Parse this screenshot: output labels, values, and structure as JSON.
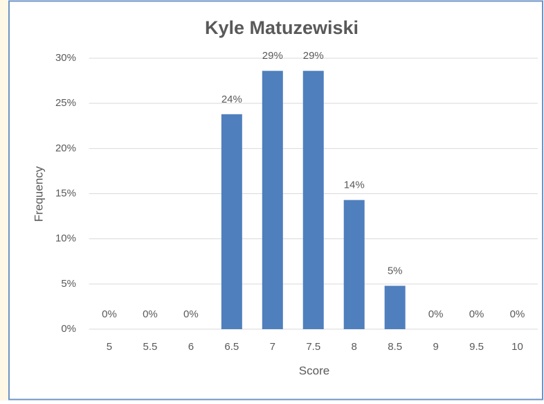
{
  "chart_data": {
    "type": "bar",
    "title": "Kyle Matuzewiski",
    "x_label": "Score",
    "y_label": "Frequency",
    "categories": [
      "5",
      "5.5",
      "6",
      "6.5",
      "7",
      "7.5",
      "8",
      "8.5",
      "9",
      "9.5",
      "10"
    ],
    "values": [
      0,
      0,
      0,
      23.8,
      28.6,
      28.6,
      14.3,
      4.8,
      0,
      0,
      0
    ],
    "value_labels": [
      "0%",
      "0%",
      "0%",
      "24%",
      "29%",
      "29%",
      "14%",
      "5%",
      "0%",
      "0%",
      "0%"
    ],
    "color": "#4f7fbd",
    "ylim": [
      0,
      30
    ],
    "yticks": [
      {
        "value": 0,
        "label": "0%"
      },
      {
        "value": 5,
        "label": "5%"
      },
      {
        "value": 10,
        "label": "10%"
      },
      {
        "value": 15,
        "label": "15%"
      },
      {
        "value": 20,
        "label": "20%"
      },
      {
        "value": 25,
        "label": "25%"
      },
      {
        "value": 30,
        "label": "30%"
      }
    ],
    "grid": true
  }
}
